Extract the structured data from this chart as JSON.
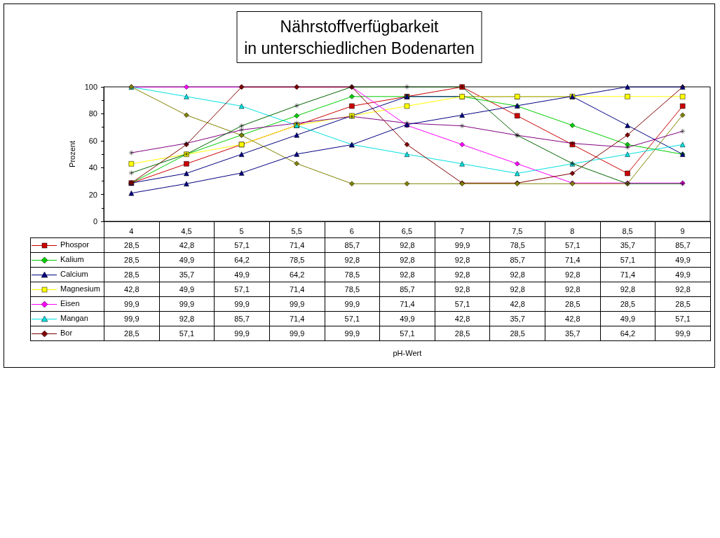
{
  "chart_data": {
    "type": "line",
    "title": "Nährstoffverfügbarkeit\nin unterschiedlichen Bodenarten",
    "annotations": [
      "pH-Wert"
    ],
    "ylabel": "Prozent",
    "categories": [
      "4",
      "4,5",
      "5",
      "5,5",
      "6",
      "6,5",
      "7",
      "7,5",
      "8",
      "8,5",
      "9"
    ],
    "ylim": [
      0,
      100
    ],
    "yticks": [
      0,
      20,
      40,
      60,
      80,
      100
    ],
    "grid": false,
    "legend": "bottom left",
    "series": [
      {
        "name": "Phospor",
        "color": "#cc0000",
        "marker": "square",
        "values": [
          28.5,
          42.8,
          57.1,
          71.4,
          85.7,
          92.8,
          99.9,
          78.5,
          57.1,
          35.7,
          85.7
        ],
        "value_labels": [
          "28,5",
          "42,8",
          "57,1",
          "71,4",
          "85,7",
          "92,8",
          "99,9",
          "78,5",
          "57,1",
          "35,7",
          "85,7"
        ]
      },
      {
        "name": "Kalium",
        "color": "#00cc00",
        "marker": "diamond",
        "values": [
          28.5,
          49.9,
          64.2,
          78.5,
          92.8,
          92.8,
          92.8,
          85.7,
          71.4,
          57.1,
          49.9
        ],
        "value_labels": [
          "28,5",
          "49,9",
          "64,2",
          "78,5",
          "92,8",
          "92,8",
          "92,8",
          "85,7",
          "71,4",
          "57,1",
          "49,9"
        ]
      },
      {
        "name": "Calcium",
        "color": "#000080",
        "marker": "triangle",
        "values": [
          28.5,
          35.7,
          49.9,
          64.2,
          78.5,
          92.8,
          92.8,
          92.8,
          92.8,
          71.4,
          49.9
        ],
        "value_labels": [
          "28,5",
          "35,7",
          "49,9",
          "64,2",
          "78,5",
          "92,8",
          "92,8",
          "92,8",
          "92,8",
          "71,4",
          "49,9"
        ]
      },
      {
        "name": "Magnesium",
        "color": "#ffff00",
        "marker": "square",
        "values": [
          42.8,
          49.9,
          57.1,
          71.4,
          78.5,
          85.7,
          92.8,
          92.8,
          92.8,
          92.8,
          92.8
        ],
        "value_labels": [
          "42,8",
          "49,9",
          "57,1",
          "71,4",
          "78,5",
          "85,7",
          "92,8",
          "92,8",
          "92,8",
          "92,8",
          "92,8"
        ]
      },
      {
        "name": "Eisen",
        "color": "#ff00ff",
        "marker": "diamond",
        "values": [
          99.9,
          99.9,
          99.9,
          99.9,
          99.9,
          71.4,
          57.1,
          42.8,
          28.5,
          28.5,
          28.5
        ],
        "value_labels": [
          "99,9",
          "99,9",
          "99,9",
          "99,9",
          "99,9",
          "71,4",
          "57,1",
          "42,8",
          "28,5",
          "28,5",
          "28,5"
        ]
      },
      {
        "name": "Mangan",
        "color": "#00e0e0",
        "marker": "triangle",
        "values": [
          99.9,
          92.8,
          85.7,
          71.4,
          57.1,
          49.9,
          42.8,
          35.7,
          42.8,
          49.9,
          57.1
        ],
        "value_labels": [
          "99,9",
          "92,8",
          "85,7",
          "71,4",
          "57,1",
          "49,9",
          "42,8",
          "35,7",
          "42,8",
          "49,9",
          "57,1"
        ]
      },
      {
        "name": "Bor",
        "color": "#800000",
        "marker": "diamond",
        "values": [
          28.5,
          57.1,
          99.9,
          99.9,
          99.9,
          57.1,
          28.5,
          28.5,
          35.7,
          64.2,
          99.9
        ],
        "value_labels": [
          "28,5",
          "57,1",
          "99,9",
          "99,9",
          "99,9",
          "57,1",
          "28,5",
          "28,5",
          "35,7",
          "64,2",
          "99,9"
        ]
      },
      {
        "color": "#808000",
        "marker": "diamond",
        "values": [
          100,
          79,
          64,
          43,
          28,
          28,
          28,
          28,
          28,
          28,
          79
        ]
      },
      {
        "color": "#800080",
        "marker": "cross",
        "values": [
          51,
          58,
          68,
          73,
          78,
          73,
          71,
          64,
          58,
          55,
          67
        ]
      },
      {
        "color": "#006400",
        "marker": "cross",
        "values": [
          36,
          50,
          71,
          86,
          100,
          100,
          100,
          64,
          43,
          28,
          28
        ]
      },
      {
        "color": "#000080",
        "marker": "triangle",
        "values": [
          21,
          28,
          36,
          50,
          57,
          72,
          79,
          86,
          93,
          100,
          100
        ]
      }
    ]
  }
}
